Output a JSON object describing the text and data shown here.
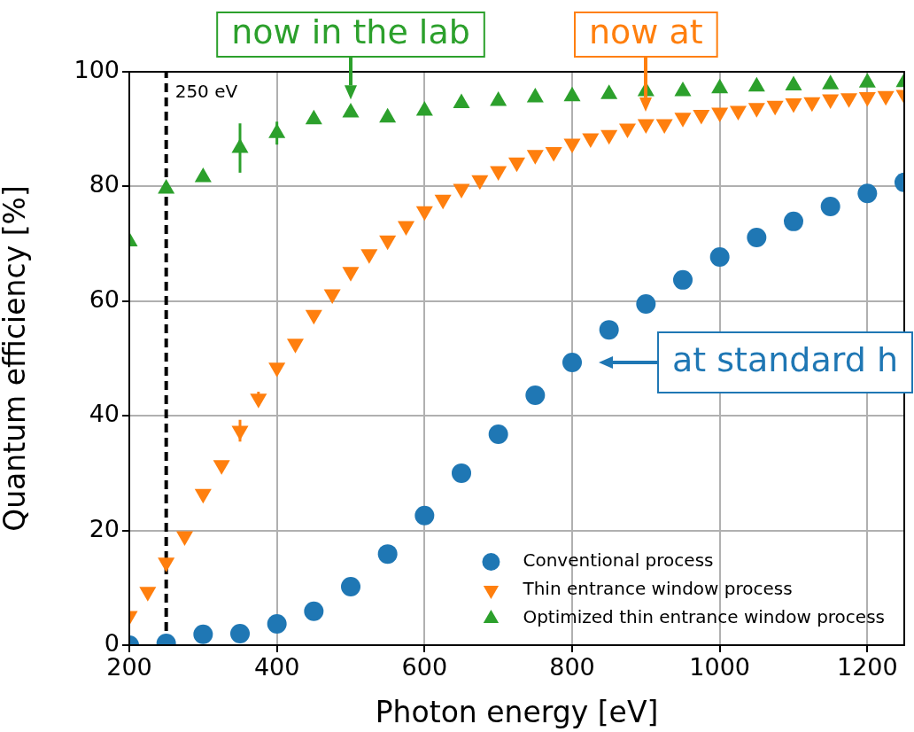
{
  "chart_data": {
    "type": "scatter",
    "xlabel": "Photon energy [eV]",
    "ylabel": "Quantum efficiency [%]",
    "xlim": [
      200,
      1250
    ],
    "xticks": [
      200,
      400,
      600,
      800,
      1000,
      1200
    ],
    "ylim": [
      0,
      100
    ],
    "yticks": [
      0,
      20,
      40,
      60,
      80,
      100
    ],
    "grid": true,
    "legend": "bottom right",
    "series": [
      {
        "name": "Conventional process",
        "color": "#1f77b4",
        "marker": "circle",
        "x": [
          200,
          250,
          300,
          350,
          400,
          450,
          500,
          550,
          600,
          650,
          700,
          750,
          800,
          850,
          900,
          950,
          1000,
          1050,
          1100,
          1150,
          1200,
          1250
        ],
        "values": [
          0,
          0.3,
          1.9,
          2.0,
          3.7,
          5.9,
          10.2,
          15.9,
          22.6,
          30.0,
          36.8,
          43.6,
          49.3,
          55.0,
          59.5,
          63.7,
          67.7,
          71.1,
          73.9,
          76.5,
          78.8,
          80.7
        ]
      },
      {
        "name": "Thin entrance window process",
        "color": "#ff7f0e",
        "marker": "triangle_down",
        "x": [
          200,
          225,
          250,
          275,
          300,
          325,
          350,
          375,
          400,
          425,
          450,
          475,
          500,
          525,
          550,
          575,
          600,
          625,
          650,
          675,
          700,
          725,
          750,
          775,
          800,
          825,
          850,
          875,
          900,
          925,
          950,
          975,
          1000,
          1025,
          1050,
          1075,
          1100,
          1125,
          1150,
          1175,
          1200,
          1225,
          1250
        ],
        "values": [
          5.1,
          9.3,
          14.4,
          19.0,
          26.4,
          31.4,
          37.4,
          43.0,
          48.4,
          52.6,
          57.6,
          61.2,
          65.1,
          68.2,
          70.6,
          73.1,
          75.7,
          77.7,
          79.6,
          81.1,
          82.7,
          84.2,
          85.5,
          86.0,
          87.5,
          88.4,
          89.0,
          90.1,
          90.9,
          90.9,
          92.0,
          92.5,
          92.9,
          93.2,
          93.7,
          94.1,
          94.5,
          94.7,
          95.2,
          95.4,
          95.6,
          95.8,
          96.0
        ],
        "errors": [
          null,
          null,
          null,
          null,
          null,
          null,
          1.9,
          1.2,
          null,
          null,
          null,
          null,
          null,
          null,
          null,
          null,
          null,
          null,
          null,
          null,
          null,
          null,
          null,
          null,
          null,
          null,
          null,
          null,
          null,
          null,
          null,
          null,
          null,
          null,
          null,
          null,
          null,
          null,
          null,
          null,
          null,
          null,
          null
        ]
      },
      {
        "name": "Optimized thin entrance window process",
        "color": "#2ca02c",
        "marker": "triangle",
        "x": [
          200,
          250,
          300,
          350,
          400,
          450,
          500,
          550,
          600,
          650,
          700,
          750,
          800,
          850,
          900,
          950,
          1000,
          1050,
          1100,
          1150,
          1200,
          1250
        ],
        "values": [
          70.4,
          79.6,
          81.6,
          86.7,
          89.3,
          91.7,
          92.9,
          92.0,
          93.2,
          94.5,
          94.9,
          95.5,
          95.7,
          96.1,
          96.6,
          96.6,
          97.1,
          97.4,
          97.6,
          97.8,
          98.1,
          98.2
        ],
        "errors": [
          null,
          null,
          null,
          4.3,
          2.0,
          null,
          null,
          null,
          null,
          null,
          null,
          null,
          null,
          null,
          null,
          null,
          null,
          null,
          null,
          null,
          null,
          null
        ]
      }
    ],
    "ref_lines": [
      {
        "axis": "x",
        "value": 250,
        "label": "250 eV",
        "color": "#000000",
        "line_style": "dashed"
      }
    ],
    "annotations": [
      {
        "text": "now in the lab",
        "x": 500,
        "y": 93
      },
      {
        "text": "now at",
        "x": 900,
        "y": 90.9
      },
      {
        "text": "at standard h",
        "x": 800,
        "y": 49.3
      }
    ]
  }
}
